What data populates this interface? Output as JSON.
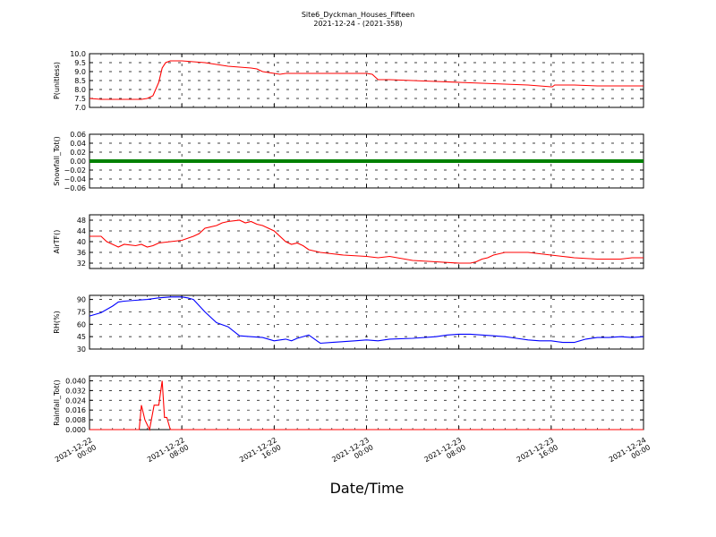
{
  "title": "Site6_Dyckman_Houses_Fifteen",
  "subtitle": "2021-12-24 - (2021-358)",
  "xlabel": "Date/Time",
  "x_tick_labels": [
    [
      "2021-12-22",
      "00:00"
    ],
    [
      "2021-12-22",
      "08:00"
    ],
    [
      "2021-12-22",
      "16:00"
    ],
    [
      "2021-12-23",
      "00:00"
    ],
    [
      "2021-12-23",
      "08:00"
    ],
    [
      "2021-12-23",
      "16:00"
    ],
    [
      "2021-12-24",
      "00:00"
    ]
  ],
  "chart_data": [
    {
      "type": "line",
      "ylabel": "P(unitless)",
      "color": "#ff0000",
      "ylim": [
        7.0,
        10.0
      ],
      "yticks": [
        "7.0",
        "7.5",
        "8.0",
        "8.5",
        "9.0",
        "9.5",
        "10.0"
      ],
      "xlim_hours": [
        0,
        48
      ],
      "x_hours": [
        0,
        1,
        2,
        3,
        4,
        4.5,
        5,
        5.5,
        6,
        6.3,
        6.6,
        7,
        7.5,
        8,
        9,
        10,
        11,
        12,
        13,
        14,
        14.5,
        15,
        16,
        16.5,
        17,
        18,
        20,
        22,
        24,
        24.5,
        25,
        26,
        28,
        30,
        32,
        34,
        36,
        38,
        39,
        40,
        40.1,
        40.3,
        41,
        42,
        44,
        46,
        48
      ],
      "values": [
        7.5,
        7.45,
        7.45,
        7.45,
        7.45,
        7.45,
        7.5,
        7.65,
        8.4,
        9.2,
        9.5,
        9.6,
        9.6,
        9.6,
        9.55,
        9.5,
        9.4,
        9.3,
        9.25,
        9.2,
        9.15,
        9.0,
        8.9,
        8.85,
        8.9,
        8.9,
        8.9,
        8.9,
        8.9,
        8.85,
        8.55,
        8.55,
        8.5,
        8.45,
        8.4,
        8.35,
        8.3,
        8.25,
        8.2,
        8.15,
        8.15,
        8.25,
        8.25,
        8.25,
        8.2,
        8.2,
        8.2
      ]
    },
    {
      "type": "line",
      "ylabel": "Snowfall_Tot()",
      "color": "#008000",
      "ylim": [
        -0.06,
        0.06
      ],
      "yticks": [
        "−0.06",
        "−0.04",
        "−0.02",
        "0.00",
        "0.02",
        "0.04",
        "0.06"
      ],
      "xlim_hours": [
        0,
        48
      ],
      "x_hours": [
        0,
        48
      ],
      "values": [
        0.0,
        0.0
      ]
    },
    {
      "type": "line",
      "ylabel": "AirTF()",
      "color": "#ff0000",
      "ylim": [
        30,
        50
      ],
      "yticks": [
        "32",
        "36",
        "40",
        "44",
        "48"
      ],
      "xlim_hours": [
        0,
        48
      ],
      "x_hours": [
        0,
        1,
        1.5,
        2,
        2.5,
        3,
        4,
        4.5,
        5,
        5.5,
        6,
        7,
        8,
        9,
        9.5,
        10,
        11,
        11.5,
        12,
        13,
        13.5,
        14,
        14.5,
        15,
        16,
        17,
        17.5,
        18,
        18.5,
        19,
        20,
        21,
        22,
        24,
        25,
        26,
        28,
        30,
        32,
        33,
        33.5,
        34,
        34.5,
        35,
        36,
        37,
        38,
        39,
        40,
        41,
        42,
        44,
        46,
        47,
        48
      ],
      "values": [
        42,
        42,
        40,
        39,
        38,
        39,
        38.5,
        39,
        38,
        38.5,
        39.5,
        40,
        40.5,
        42,
        43,
        45,
        46,
        47,
        47.5,
        48,
        47,
        47.5,
        46.5,
        46,
        44,
        40,
        39,
        39.5,
        38.5,
        37,
        36,
        35.5,
        35,
        34.5,
        34,
        34.5,
        33,
        32.5,
        32,
        32,
        32.5,
        33.5,
        34,
        35,
        36,
        36,
        36,
        35.5,
        35,
        34.5,
        34,
        33.5,
        33.5,
        34,
        34
      ]
    },
    {
      "type": "line",
      "ylabel": "RH(%)",
      "color": "#0000ff",
      "ylim": [
        30,
        95
      ],
      "yticks": [
        "30",
        "45",
        "60",
        "75",
        "90"
      ],
      "xlim_hours": [
        0,
        48
      ],
      "x_hours": [
        0,
        1,
        2,
        2.5,
        3,
        4,
        5,
        6,
        7,
        7.5,
        8,
        8.5,
        9,
        10,
        11,
        12,
        13,
        14,
        15,
        16,
        17,
        17.5,
        18,
        19,
        20,
        21,
        22,
        23,
        24,
        25,
        26,
        28,
        30,
        31,
        32,
        33,
        34,
        35,
        36,
        37,
        38,
        39,
        40,
        41,
        42,
        43,
        44,
        45,
        46,
        47,
        48
      ],
      "values": [
        70,
        74,
        82,
        87,
        88,
        89,
        90,
        92,
        93,
        93,
        93,
        92,
        90,
        75,
        62,
        57,
        46,
        45,
        44,
        40,
        42,
        40,
        43,
        47,
        37,
        38,
        39,
        40,
        41,
        40,
        42,
        43,
        45,
        47,
        48,
        48,
        47,
        46,
        45,
        43,
        41,
        40,
        40,
        38,
        38,
        42,
        44,
        44,
        45,
        44,
        45
      ]
    },
    {
      "type": "line",
      "ylabel": "Rainfall_Tot()",
      "color": "#ff0000",
      "ylim": [
        0.0,
        0.044
      ],
      "yticks": [
        "0.000",
        "0.008",
        "0.016",
        "0.024",
        "0.032",
        "0.040"
      ],
      "xlim_hours": [
        0,
        48
      ],
      "x_hours": [
        0,
        4.3,
        4.5,
        4.8,
        5.2,
        5.6,
        6.0,
        6.3,
        6.5,
        6.7,
        7.0,
        7.2,
        48
      ],
      "values": [
        0.0,
        0.0,
        0.02,
        0.008,
        0.0,
        0.02,
        0.02,
        0.04,
        0.01,
        0.01,
        0.0,
        0.0,
        0.0
      ]
    }
  ]
}
